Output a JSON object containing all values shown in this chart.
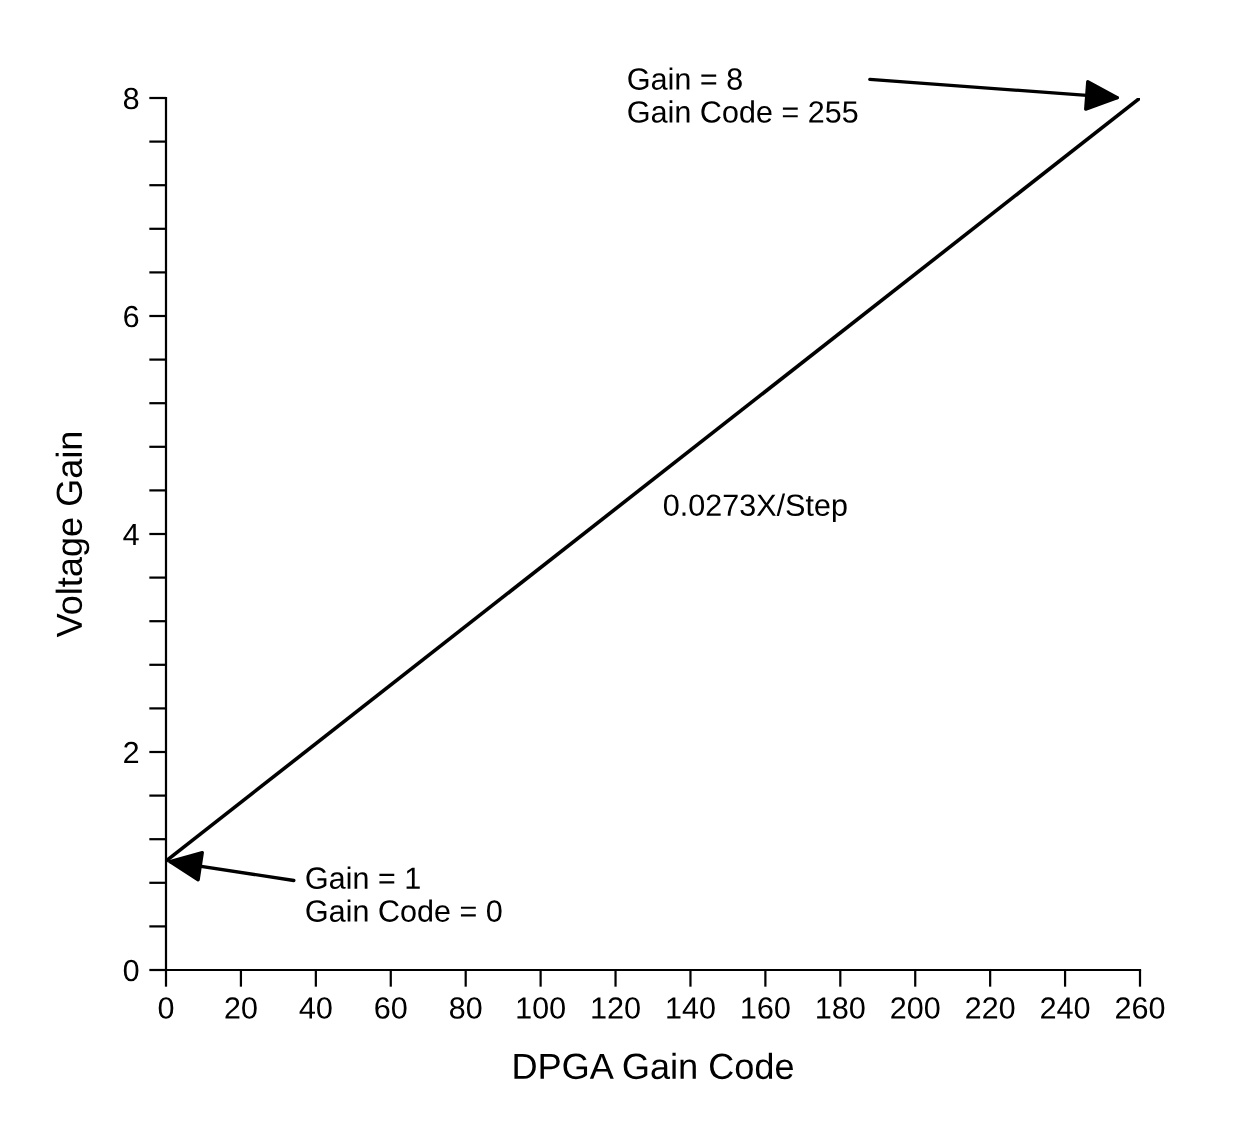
{
  "chart_data": {
    "type": "line",
    "xlabel": "DPGA Gain Code",
    "ylabel": "Voltage Gain",
    "x": [
      0,
      260
    ],
    "series": [
      {
        "color": "#000000",
        "values": [
          1,
          8
        ]
      }
    ],
    "xlim": [
      0,
      260
    ],
    "ylim": [
      0,
      8
    ],
    "xticks": [
      0,
      20,
      40,
      60,
      80,
      100,
      120,
      140,
      160,
      180,
      200,
      220,
      240,
      260
    ],
    "yticks": [
      0,
      {
        "value": 0.4,
        "label": null
      },
      {
        "value": 0.8,
        "label": null
      },
      {
        "value": 1.2,
        "label": null
      },
      {
        "value": 1.6,
        "label": null
      },
      2,
      {
        "value": 2.4,
        "label": null
      },
      {
        "value": 2.8,
        "label": null
      },
      {
        "value": 3.2,
        "label": null
      },
      {
        "value": 3.6,
        "label": null
      },
      4,
      {
        "value": 4.4,
        "label": null
      },
      {
        "value": 4.8,
        "label": null
      },
      {
        "value": 5.2,
        "label": null
      },
      {
        "value": 5.6,
        "label": null
      },
      6,
      {
        "value": 6.4,
        "label": null
      },
      {
        "value": 6.8,
        "label": null
      },
      {
        "value": 7.2,
        "label": null
      },
      {
        "value": 7.6,
        "label": null
      },
      8
    ],
    "grid": false,
    "legend": false,
    "marker": "none",
    "line_style": "solid",
    "annotations": [
      {
        "text": "Gain = 1\nGain Code = 0",
        "x": 0,
        "y": 1
      },
      {
        "text": "Gain = 8\nGain Code = 255",
        "x": 255,
        "y": 8
      },
      "0.0273X/Step"
    ]
  }
}
